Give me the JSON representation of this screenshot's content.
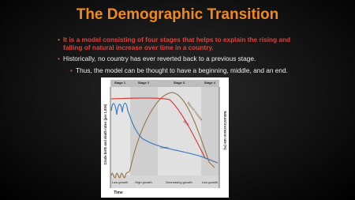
{
  "header": {
    "title": "The Demographic Transition"
  },
  "bullets": [
    {
      "text": "It is a model consisting of four stages that helps to explain the rising and falling of natural increase over time in a country."
    },
    {
      "text": "Historically, no country has ever reverted back to a previous stage."
    },
    {
      "text": "Thus, the model can be thought to have a beginning, middle, and an end."
    }
  ],
  "diagram": {
    "stages": [
      "Stage 1",
      "Stage 2",
      "Stage 3",
      "Stage 4"
    ],
    "growth": [
      "Low growth",
      "High growth",
      "Decreasing growth",
      "Low growth"
    ],
    "curves": [
      "Natural increase",
      "Birth",
      "Death"
    ],
    "y_label": "Crude birth and death rates (per 1,000)",
    "y2_label": "Natural increase rate (%)",
    "x_label": "Time"
  }
}
